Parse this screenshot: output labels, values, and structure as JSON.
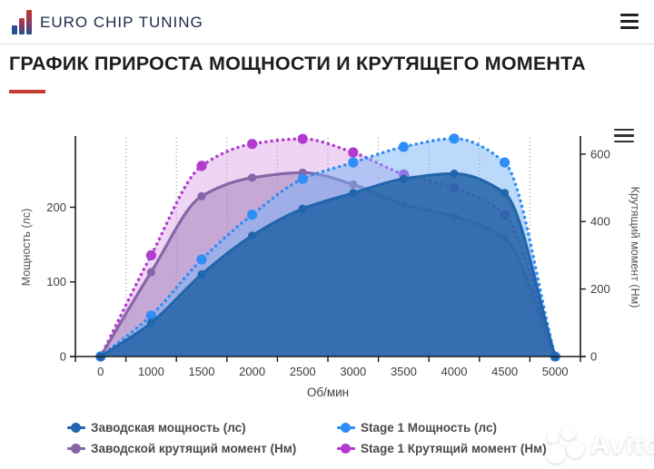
{
  "header": {
    "brand": "EURO CHIP TUNING"
  },
  "title": "ГРАФИК ПРИРОСТА МОЩНОСТИ И КРУТЯЩЕГО МОМЕНТА",
  "accent_color": "#c43c2e",
  "chart_data": {
    "type": "line",
    "categories": [
      "0",
      "1000",
      "1500",
      "2000",
      "2500",
      "3000",
      "3500",
      "4000",
      "4500",
      "5000"
    ],
    "xlabel": "Об/мин",
    "ylabel_left": "Мощность (лс)",
    "ylabel_right": "Крутящий момент (Нм)",
    "y_left_ticks": [
      0,
      100,
      200
    ],
    "y_right_ticks": [
      0,
      200,
      400,
      600
    ],
    "y_left_max": 293,
    "y_right_max": 648,
    "grid": "vertical-dotted",
    "legend_position": "bottom",
    "series": [
      {
        "name": "Заводская мощность (лс)",
        "axis": "left",
        "style": "solid",
        "color": "#2166ac",
        "fill": "rgba(31,96,165,0.82)",
        "values": [
          0,
          45,
          110,
          162,
          198,
          219,
          238,
          245,
          219,
          0
        ]
      },
      {
        "name": "Stage 1 Мощность (лс)",
        "axis": "left",
        "style": "dotted",
        "color": "#2e8ef5",
        "fill": "rgba(120,180,245,0.5)",
        "values": [
          0,
          55,
          130,
          190,
          238,
          260,
          281,
          292,
          260,
          0
        ]
      },
      {
        "name": "Заводской крутящий момент (Нм)",
        "axis": "right",
        "style": "solid",
        "color": "#8766a8",
        "fill": "rgba(148,112,180,0.45)",
        "values": [
          0,
          250,
          475,
          530,
          545,
          510,
          450,
          415,
          350,
          0
        ]
      },
      {
        "name": "Stage 1 Крутящий момент (Нм)",
        "axis": "right",
        "style": "dotted",
        "color": "#b13bd1",
        "fill": "rgba(213,150,224,0.4)",
        "values": [
          0,
          300,
          565,
          630,
          645,
          605,
          540,
          500,
          420,
          0
        ]
      }
    ]
  },
  "watermark": {
    "text": "Avito"
  }
}
